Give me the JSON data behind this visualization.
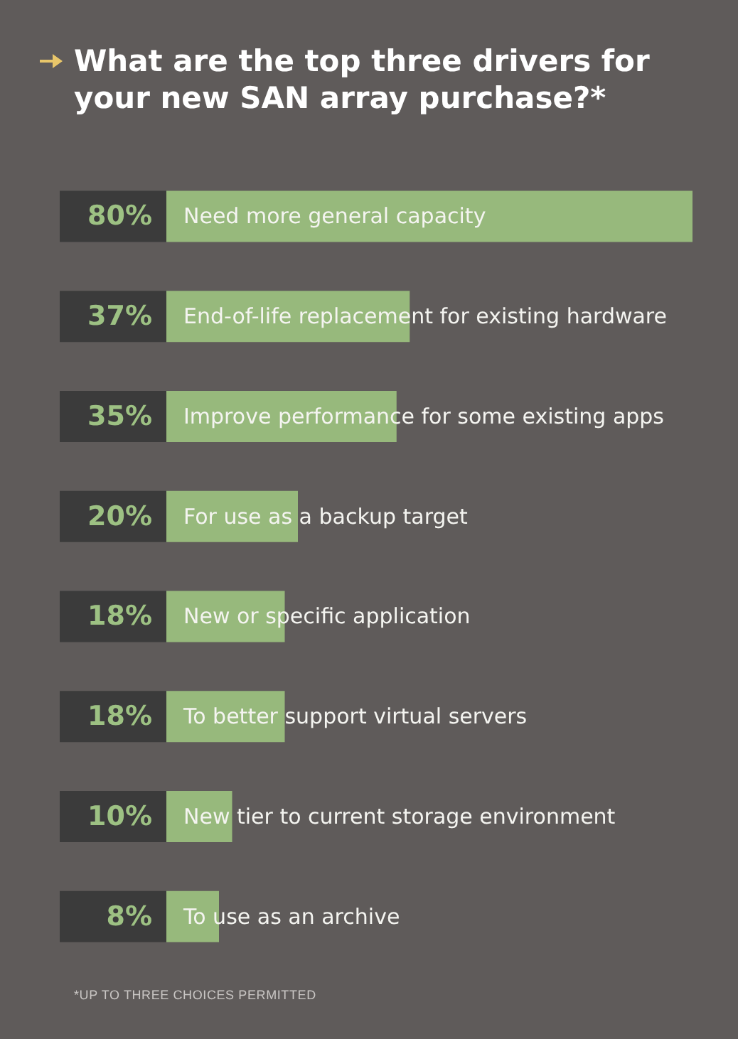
{
  "chart_data": {
    "type": "bar",
    "orientation": "horizontal",
    "title": "What are the top three drivers for your new SAN array purchase?*",
    "categories": [
      "Need more general capacity",
      "End-of-life replacement for existing hardware",
      "Improve performance for some existing apps",
      "For use as a backup target",
      "New or specific application",
      "To better support virtual servers",
      "New tier to current storage environment",
      "To use as an archive"
    ],
    "values": [
      80,
      37,
      35,
      20,
      18,
      18,
      10,
      8
    ],
    "value_labels": [
      "80%",
      "37%",
      "35%",
      "20%",
      "18%",
      "18%",
      "10%",
      "8%"
    ],
    "color": "#97b97c",
    "annotations": [
      "*UP TO THREE CHOICES PERMITTED"
    ]
  }
}
